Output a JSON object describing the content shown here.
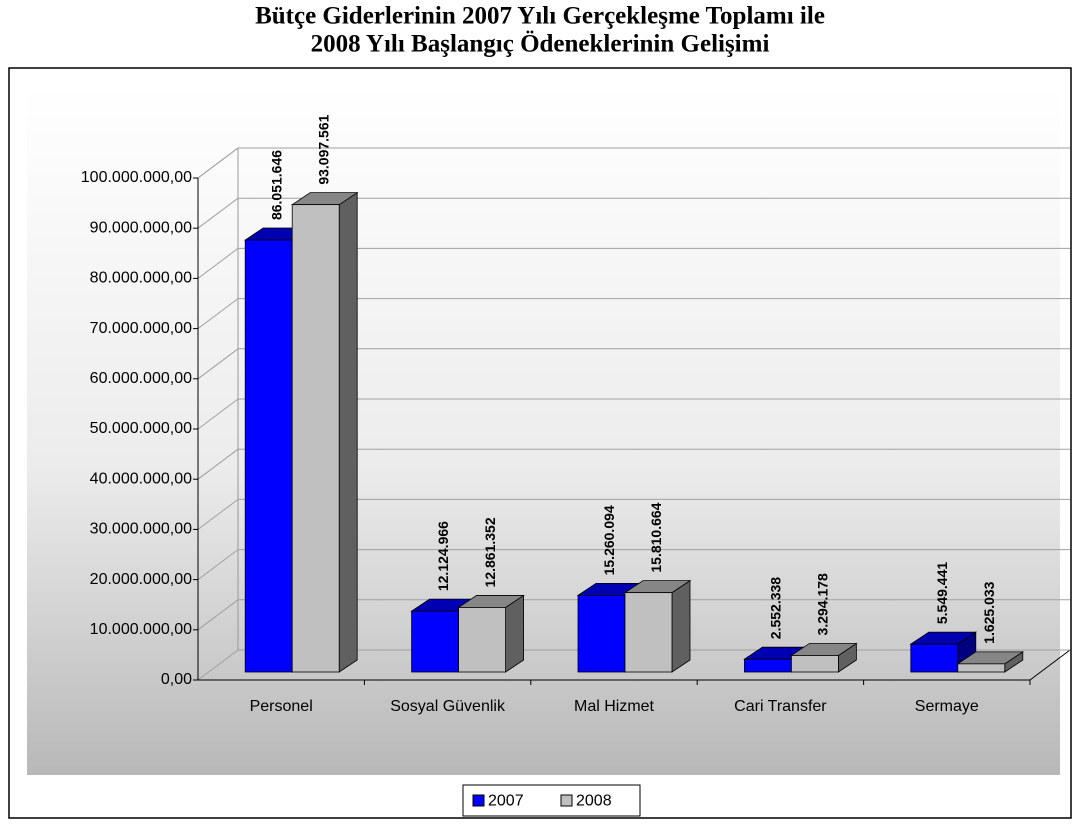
{
  "chart_data": {
    "type": "bar3d",
    "title": "Bütçe Giderlerinin 2007 Yılı Gerçekleşme Toplamı ile",
    "subtitle": "2008 Yılı Başlangıç Ödeneklerinin Gelişimi",
    "categories": [
      "Personel",
      "Sosyal Güvenlik",
      "Mal Hizmet",
      "Cari Transfer",
      "Sermaye"
    ],
    "series": [
      {
        "name": "2007",
        "color": "#0000ff",
        "values": [
          86051646,
          12124966,
          15260094,
          2552338,
          5549441
        ],
        "value_labels": [
          "86.051.646",
          "12.124.966",
          "15.260.094",
          "2.552.338",
          "5.549.441"
        ]
      },
      {
        "name": "2008",
        "color": "#c0c0c0",
        "values": [
          93097561,
          12861352,
          15810664,
          3294178,
          1625033
        ],
        "value_labels": [
          "93.097.561",
          "12.861.352",
          "15.810.664",
          "3.294.178",
          "1.625.033"
        ]
      }
    ],
    "ylim": [
      0,
      100000000
    ],
    "yticks": [
      {
        "value": 0,
        "label": "0,00"
      },
      {
        "value": 10000000,
        "label": "10.000.000,00"
      },
      {
        "value": 20000000,
        "label": "20.000.000,00"
      },
      {
        "value": 30000000,
        "label": "30.000.000,00"
      },
      {
        "value": 40000000,
        "label": "40.000.000,00"
      },
      {
        "value": 50000000,
        "label": "50.000.000,00"
      },
      {
        "value": 60000000,
        "label": "60.000.000,00"
      },
      {
        "value": 70000000,
        "label": "70.000.000,00"
      },
      {
        "value": 80000000,
        "label": "80.000.000,00"
      },
      {
        "value": 90000000,
        "label": "90.000.000,00"
      },
      {
        "value": 100000000,
        "label": "100.000.000,00"
      }
    ],
    "grid": true,
    "legend": "bottom"
  }
}
